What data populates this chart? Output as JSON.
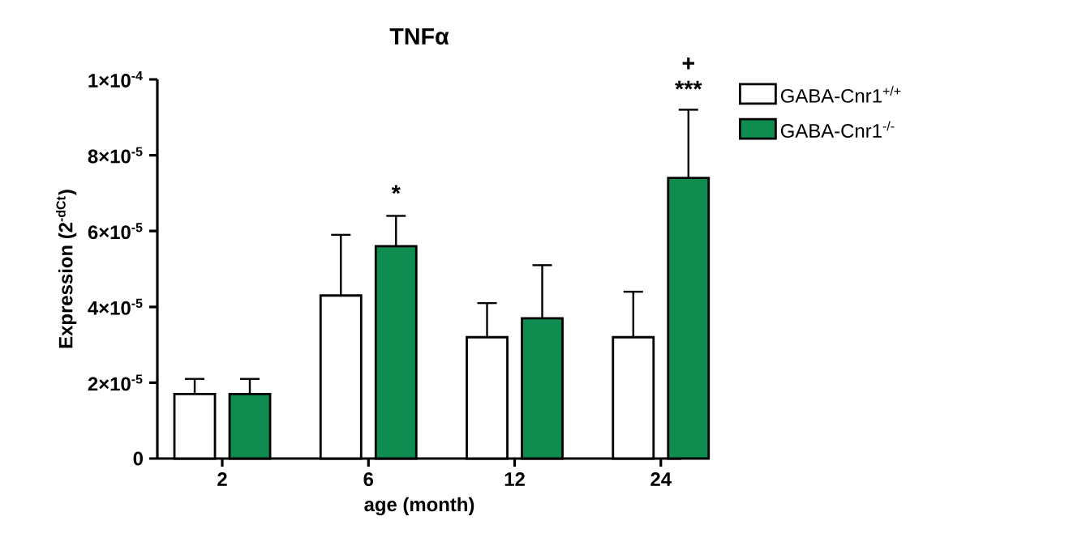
{
  "chart_data": {
    "type": "bar",
    "title": "TNFα",
    "xlabel": "age (month)",
    "ylabel": "Expression (2$^{-dCt}$)",
    "categories": [
      "2",
      "6",
      "12",
      "24"
    ],
    "series": [
      {
        "name": "GABA-Cnr1$^{+/+}$",
        "color": "#ffffff",
        "values": [
          1.7e-05,
          4.3e-05,
          3.2e-05,
          3.2e-05
        ],
        "errors": [
          4e-06,
          1.6e-05,
          9e-06,
          1.2e-05
        ]
      },
      {
        "name": "GABA-Cnr1$^{-/-}$",
        "color": "#0f8c50",
        "values": [
          1.7e-05,
          5.6e-05,
          3.7e-05,
          7.4e-05
        ],
        "errors": [
          4e-06,
          8e-06,
          1.4e-05,
          1.8e-05
        ]
      }
    ],
    "ylim": [
      0,
      0.0001
    ],
    "yticks": [
      0,
      {
        "value": 2e-05,
        "label": "2×10$^{-5}$"
      },
      {
        "value": 4e-05,
        "label": "4×10$^{-5}$"
      },
      {
        "value": 6e-05,
        "label": "6×10$^{-5}$"
      },
      {
        "value": 8e-05,
        "label": "8×10$^{-5}$"
      },
      {
        "value": 0.0001,
        "label": "1×10$^{-4}$"
      }
    ],
    "annotations": [
      "*",
      "***",
      "+"
    ],
    "legend": "right",
    "grid": false
  }
}
